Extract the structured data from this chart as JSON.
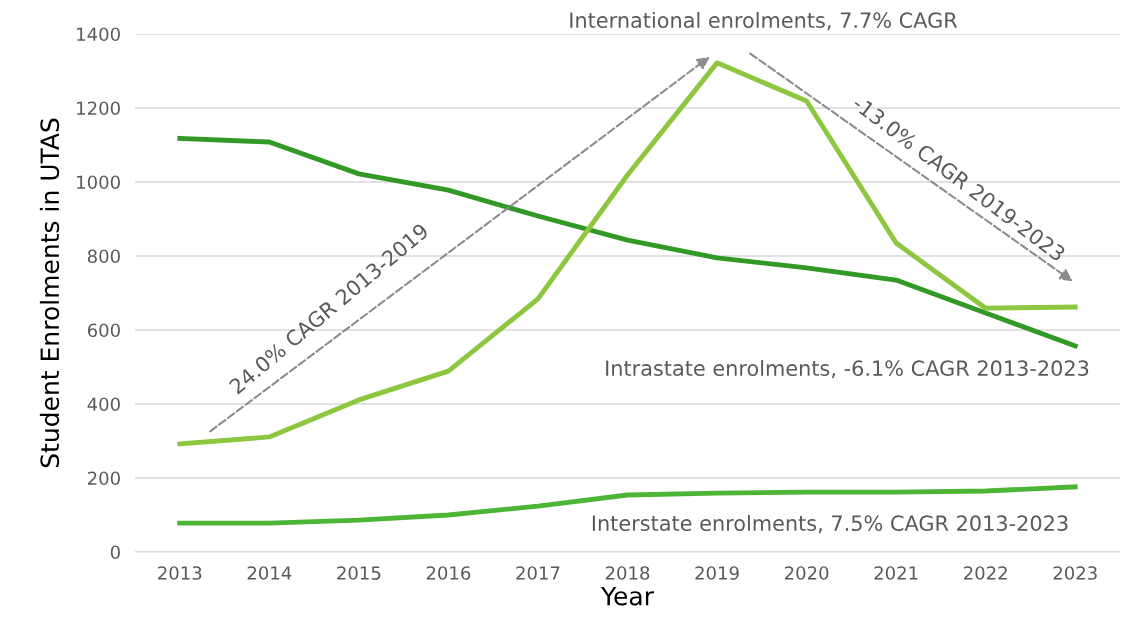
{
  "chart_data": {
    "type": "line",
    "xlabel": "Year",
    "ylabel": "Student Enrolments in UTAS",
    "categories": [
      "2013",
      "2014",
      "2015",
      "2016",
      "2017",
      "2018",
      "2019",
      "2020",
      "2021",
      "2022",
      "2023"
    ],
    "series": [
      {
        "color": "#339926",
        "values": [
          1118,
          1108,
          1022,
          978,
          908,
          843,
          795,
          768,
          735,
          646,
          557
        ]
      },
      {
        "color": "#8dc63f",
        "values": [
          292,
          311,
          411,
          489,
          684,
          1019,
          1322,
          1219,
          835,
          659,
          662
        ]
      },
      {
        "color": "#4db536",
        "values": [
          78,
          78,
          86,
          100,
          124,
          154,
          159,
          162,
          162,
          165,
          176
        ]
      }
    ],
    "ylim": [
      0,
      1400
    ],
    "yticks": [
      0,
      200,
      400,
      600,
      800,
      1000,
      1200,
      1400
    ],
    "grid": "y",
    "legend": false,
    "marker": "none",
    "line_style": "solid",
    "annotations": [
      "International enrolments, 7.7% CAGR",
      "-13.0% CAGR 2019-2023",
      "24.0% CAGR 2013-2019",
      "Intrastate enrolments, -6.1% CAGR 2013-2023",
      "Interstate enrolments, 7.5% CAGR 2013-2023"
    ]
  }
}
